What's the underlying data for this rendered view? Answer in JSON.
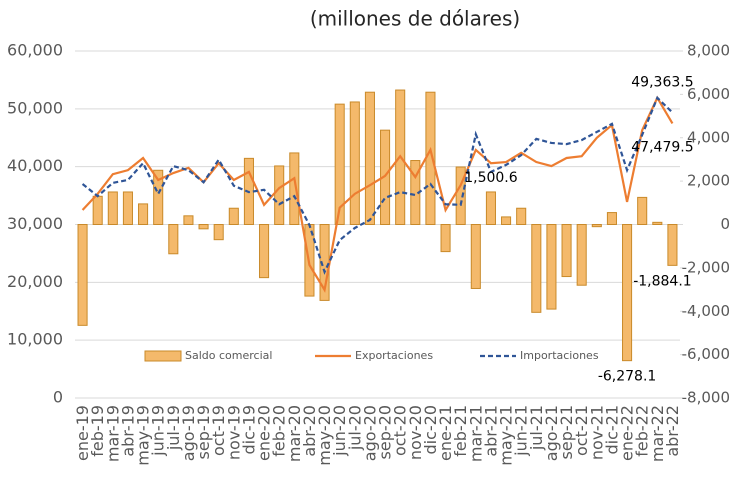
{
  "chart_data": {
    "type": "combo",
    "title": "(millones de dólares)",
    "categories": [
      "ene-19",
      "feb-19",
      "mar-19",
      "abr-19",
      "may-19",
      "jun-19",
      "jul-19",
      "ago-19",
      "sep-19",
      "oct-19",
      "nov-19",
      "dic-19",
      "ene-20",
      "feb-20",
      "mar-20",
      "abr-20",
      "may-20",
      "jun-20",
      "jul-20",
      "ago-20",
      "sep-20",
      "oct-20",
      "nov-20",
      "dic-20",
      "ene-21",
      "feb-21",
      "mar-21",
      "abr-21",
      "may-21",
      "jun-21",
      "jul-21",
      "ago-21",
      "sep-21",
      "oct-21",
      "nov-21",
      "dic-21",
      "ene-22",
      "feb-22",
      "mar-22",
      "abr-22"
    ],
    "series": [
      {
        "name": "Saldo comercial",
        "type": "bar",
        "axis": "y2",
        "color": "#f4b96b",
        "values": [
          -4650,
          1300,
          1500,
          1500,
          950,
          2500,
          -1350,
          400,
          -200,
          -700,
          750,
          3050,
          -2450,
          2700,
          3300,
          -3300,
          -3500,
          5550,
          5650,
          6100,
          4350,
          6200,
          2950,
          6100,
          -1250,
          2650,
          -2950,
          1500.6,
          350,
          750,
          -4050,
          -3900,
          -2400,
          -2800,
          -100,
          550,
          -6278.1,
          1250,
          100,
          -1884.1
        ],
        "value_labels": [
          null,
          null,
          null,
          null,
          null,
          null,
          null,
          null,
          null,
          null,
          null,
          null,
          null,
          null,
          null,
          null,
          null,
          null,
          null,
          null,
          null,
          null,
          null,
          null,
          null,
          null,
          null,
          "1,500.6",
          null,
          null,
          null,
          null,
          null,
          null,
          null,
          null,
          "-6,278.1",
          null,
          null,
          "-1,884.1"
        ]
      },
      {
        "name": "Exportaciones",
        "type": "line",
        "color": "#ed7d31",
        "values": [
          32500,
          35300,
          38700,
          39400,
          41500,
          37700,
          38900,
          39800,
          37300,
          40600,
          37700,
          39100,
          33400,
          36300,
          38000,
          23000,
          18700,
          32900,
          35300,
          36800,
          38400,
          41800,
          38200,
          42900,
          32500,
          36800,
          42900,
          40600,
          40800,
          42400,
          40800,
          40100,
          41500,
          41800,
          45000,
          47200,
          33900,
          46300,
          51900,
          47479.5
        ],
        "value_labels": [
          null,
          null,
          null,
          null,
          null,
          null,
          null,
          null,
          null,
          null,
          null,
          null,
          null,
          null,
          null,
          null,
          null,
          null,
          null,
          null,
          null,
          null,
          null,
          null,
          null,
          null,
          null,
          null,
          null,
          null,
          null,
          null,
          null,
          null,
          null,
          null,
          null,
          null,
          null,
          "47,479.5"
        ]
      },
      {
        "name": "Importaciones",
        "type": "line",
        "dashed": true,
        "color": "#2f5597",
        "values": [
          37000,
          34900,
          37200,
          37700,
          40600,
          35300,
          40100,
          39400,
          37300,
          41200,
          36700,
          35600,
          36000,
          33500,
          34900,
          29900,
          21800,
          27300,
          29400,
          30800,
          34600,
          35600,
          35100,
          37000,
          33500,
          33400,
          45600,
          39100,
          40300,
          42000,
          44800,
          44100,
          43900,
          44600,
          46000,
          47400,
          39400,
          45500,
          51900,
          49363.5
        ],
        "value_labels": [
          null,
          null,
          null,
          null,
          null,
          null,
          null,
          null,
          null,
          null,
          null,
          null,
          null,
          null,
          null,
          null,
          null,
          null,
          null,
          null,
          null,
          null,
          null,
          null,
          null,
          null,
          null,
          null,
          null,
          null,
          null,
          null,
          null,
          null,
          null,
          null,
          null,
          null,
          null,
          "49,363.5"
        ]
      }
    ],
    "ylim": [
      0,
      60000
    ],
    "yticks": [
      0,
      {
        "value": 10000,
        "label": "10,000"
      },
      {
        "value": 20000,
        "label": "20,000"
      },
      {
        "value": 30000,
        "label": "30,000"
      },
      {
        "value": 40000,
        "label": "40,000"
      },
      {
        "value": 50000,
        "label": "50,000"
      },
      {
        "value": 60000,
        "label": "60,000"
      }
    ],
    "y2lim": [
      -8000,
      8000
    ],
    "y2ticks": [
      {
        "value": -8000,
        "label": "-8,000"
      },
      {
        "value": -6000,
        "label": "-6,000"
      },
      {
        "value": -4000,
        "label": "-4,000"
      },
      {
        "value": -2000,
        "label": "-2,000"
      },
      0,
      {
        "value": 2000,
        "label": "2,000"
      },
      {
        "value": 4000,
        "label": "4,000"
      },
      {
        "value": 6000,
        "label": "6,000"
      },
      {
        "value": 8000,
        "label": "8,000"
      }
    ],
    "grid": true,
    "legend": "bottom"
  }
}
